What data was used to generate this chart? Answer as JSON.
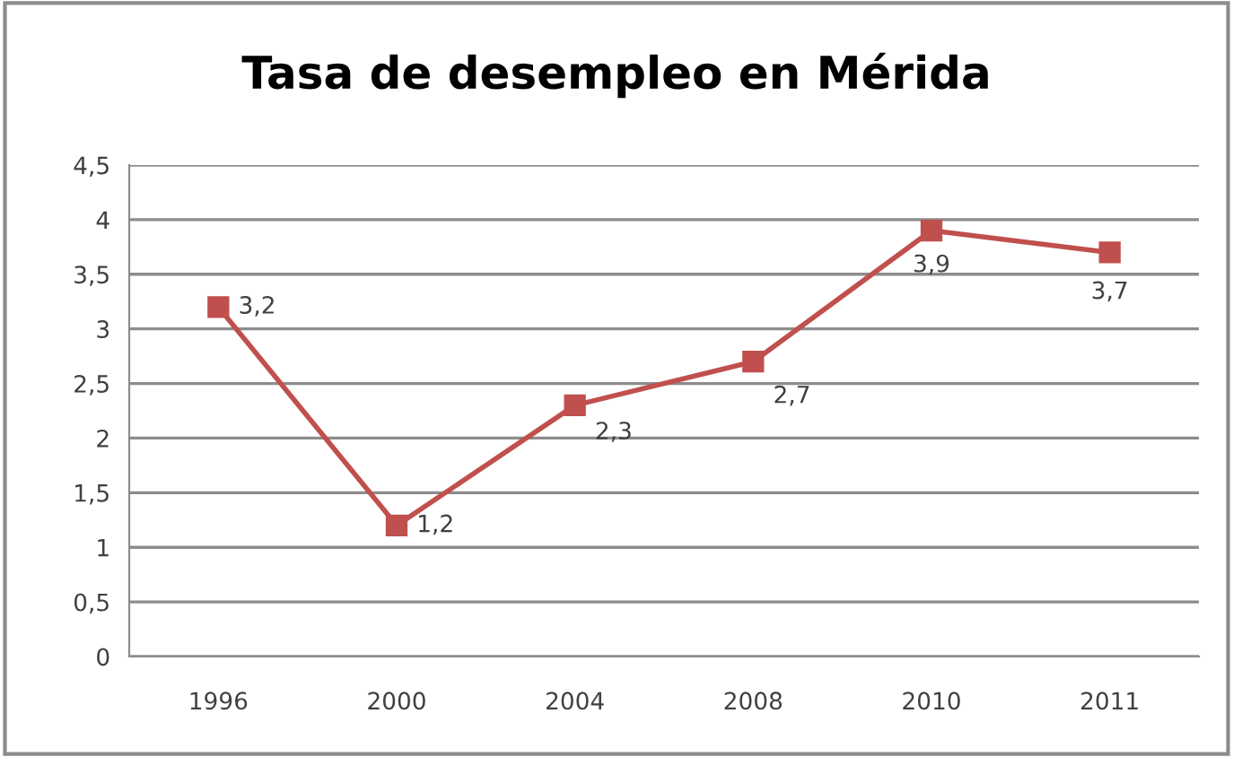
{
  "chart_data": {
    "type": "line",
    "title": "Tasa de desempleo en Mérida",
    "categories": [
      "1996",
      "2000",
      "2004",
      "2008",
      "2010",
      "2011"
    ],
    "series": [
      {
        "color": "#c0504d",
        "values": [
          3.2,
          1.2,
          2.3,
          2.7,
          3.9,
          3.7
        ],
        "value_labels": [
          "3,2",
          "1,2",
          "2,3",
          "2,7",
          "3,9",
          "3,7"
        ]
      }
    ],
    "ylim": [
      0,
      4.5
    ],
    "yticks": [
      0,
      {
        "value": 0.5,
        "label": "0,5"
      },
      1,
      {
        "value": 1.5,
        "label": "1,5"
      },
      2,
      {
        "value": 2.5,
        "label": "2,5"
      },
      3,
      {
        "value": 3.5,
        "label": "3,5"
      },
      4,
      {
        "value": 4.5,
        "label": "4,5"
      }
    ],
    "grid": "y",
    "marker": "square",
    "line_style": "solid"
  }
}
